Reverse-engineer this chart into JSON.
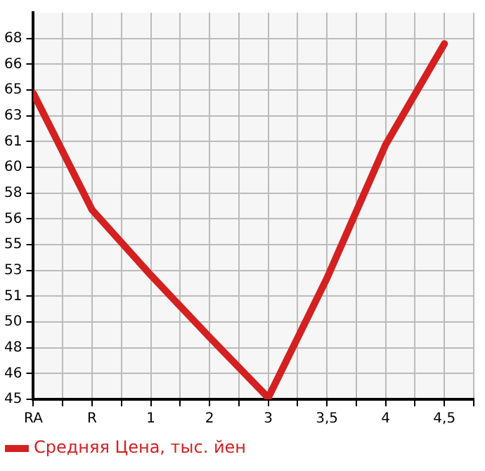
{
  "chart_data": {
    "type": "line",
    "categories": [
      "RA",
      "R",
      "1",
      "2",
      "3",
      "3,5",
      "4",
      "4,5"
    ],
    "series": [
      {
        "name": "Средняя Цена, тыс. йен",
        "color": "#d42020",
        "values": [
          64.4,
          56.9,
          52.7,
          48.7,
          44.8,
          52.5,
          61.1,
          67.6
        ]
      }
    ],
    "ylim": [
      44.7,
      69.6
    ],
    "yticks": [
      {
        "value": 44.7,
        "label": "45"
      },
      {
        "value": 46.36,
        "label": "46"
      },
      {
        "value": 48.02,
        "label": "48"
      },
      {
        "value": 49.68,
        "label": "50"
      },
      {
        "value": 51.34,
        "label": "51"
      },
      {
        "value": 53.0,
        "label": "53"
      },
      {
        "value": 54.66,
        "label": "55"
      },
      {
        "value": 56.32,
        "label": "56"
      },
      {
        "value": 57.98,
        "label": "58"
      },
      {
        "value": 59.64,
        "label": "60"
      },
      {
        "value": 61.3,
        "label": "61"
      },
      {
        "value": 62.96,
        "label": "63"
      },
      {
        "value": 64.62,
        "label": "65"
      },
      {
        "value": 66.28,
        "label": "66"
      },
      {
        "value": 67.94,
        "label": "68"
      }
    ],
    "grid": true,
    "legend": "bottom left",
    "marker": "none",
    "line_style": "solid"
  }
}
